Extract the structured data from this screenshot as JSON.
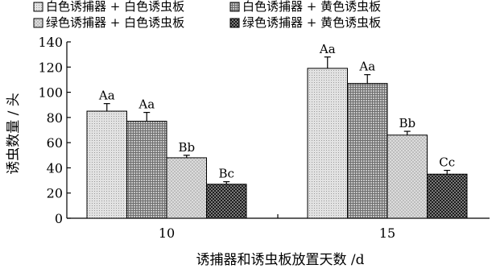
{
  "chart_data": {
    "type": "bar",
    "categories": [
      "10",
      "15"
    ],
    "series": [
      {
        "name": "白色诱捕器 + 白色诱虫板",
        "values": [
          85,
          119
        ],
        "errors": [
          6,
          9
        ],
        "labels": [
          "Aa",
          "Aa"
        ],
        "pattern": "light-dots"
      },
      {
        "name": "白色诱捕器 + 黄色诱虫板",
        "values": [
          77,
          107
        ],
        "errors": [
          7,
          7
        ],
        "labels": [
          "Aa",
          "Aa"
        ],
        "pattern": "grid"
      },
      {
        "name": "绿色诱捕器 + 白色诱虫板",
        "values": [
          48,
          66
        ],
        "errors": [
          2,
          3
        ],
        "labels": [
          "Bb",
          "Bb"
        ],
        "pattern": "light-checker"
      },
      {
        "name": "绿色诱捕器 + 黄色诱虫板",
        "values": [
          27,
          35
        ],
        "errors": [
          2,
          3
        ],
        "labels": [
          "Bc",
          "Cc"
        ],
        "pattern": "dark-checker"
      }
    ],
    "xlabel": "诱捕器和诱虫板放置天数 /d",
    "ylabel": "诱虫数量 / 头",
    "ylim": [
      0,
      140
    ],
    "yticks": [
      "0",
      "20",
      "40",
      "60",
      "80",
      "100",
      "120",
      "140"
    ],
    "grid": false,
    "legend_position": "top"
  }
}
